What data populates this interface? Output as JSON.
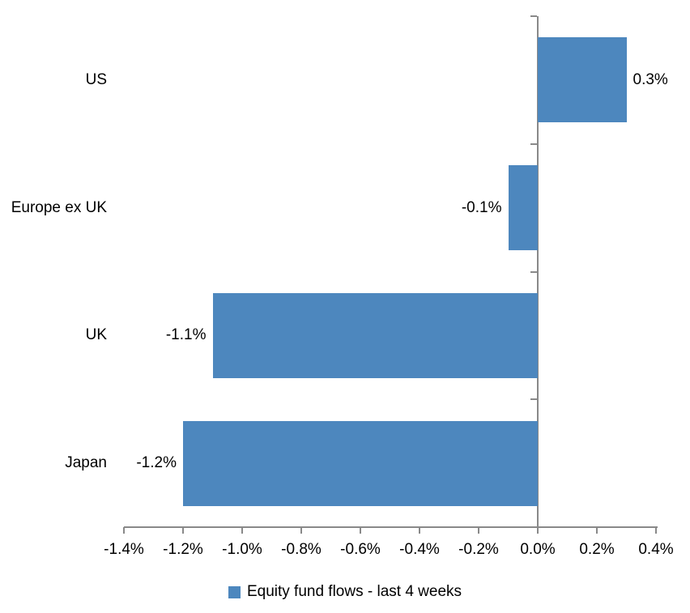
{
  "chart": {
    "colors": {
      "bar": "#4d87be",
      "axis": "#898989",
      "text": "#000000",
      "background": "#ffffff"
    }
  },
  "chart_data": {
    "type": "bar",
    "orientation": "horizontal",
    "title": "",
    "xlabel": "",
    "ylabel": "",
    "categories": [
      "US",
      "Europe ex UK",
      "UK",
      "Japan"
    ],
    "values": [
      0.3,
      -0.1,
      -1.1,
      -1.2
    ],
    "data_labels": [
      "0.3%",
      "-0.1%",
      "-1.1%",
      "-1.2%"
    ],
    "series_name": "Equity fund flows - last 4 weeks",
    "xlim": [
      -1.4,
      0.4
    ],
    "x_tick_values": [
      -1.4,
      -1.2,
      -1.0,
      -0.8,
      -0.6,
      -0.4,
      -0.2,
      0.0,
      0.2,
      0.4
    ],
    "x_tick_labels": [
      "-1.4%",
      "-1.2%",
      "-1.0%",
      "-0.8%",
      "-0.6%",
      "-0.4%",
      "-0.2%",
      "0.0%",
      "0.2%",
      "0.4%"
    ],
    "grid": false,
    "legend_position": "bottom"
  }
}
